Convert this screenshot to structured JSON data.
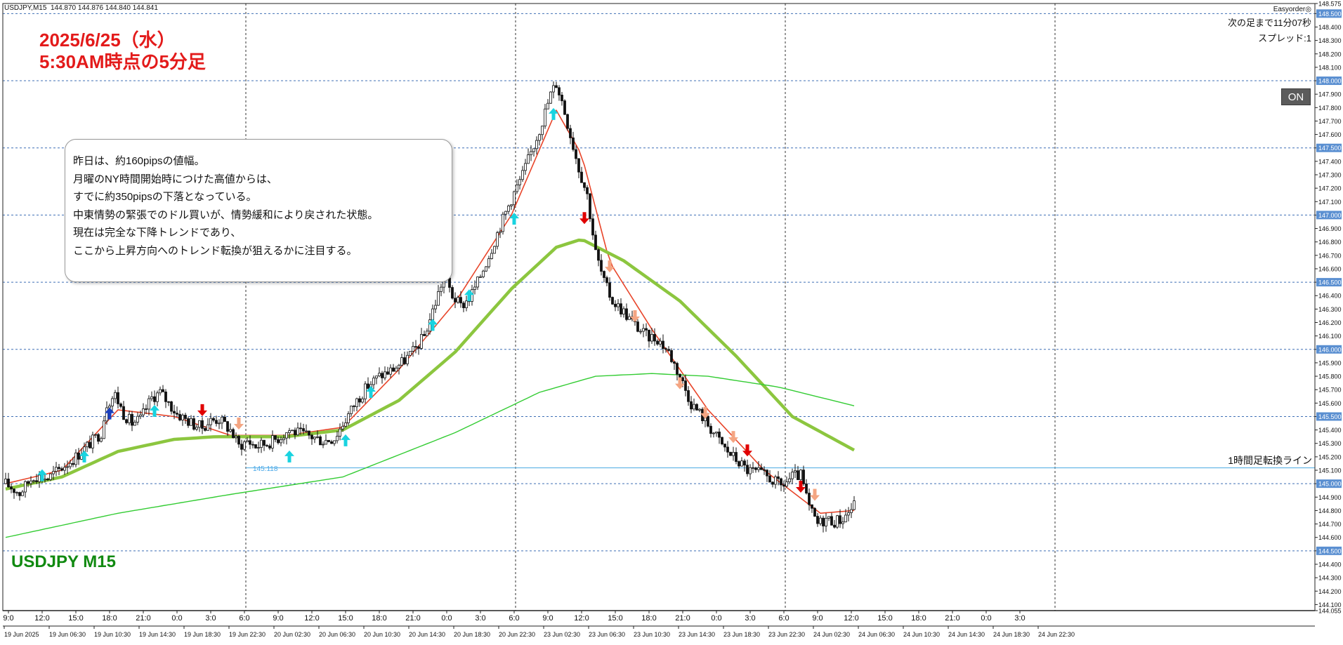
{
  "header": {
    "symbol_tf": "USDJPY,M15",
    "ohlc": "144.870 144.876 144.840 144.841"
  },
  "overlay": {
    "date_title": "2025/6/25（水）",
    "time_title": "5:30AM時点の5分足",
    "symbol_label": "USDJPY M15",
    "ea_name": "Easyorder◎",
    "next_bar": "次の足まで11分07秒",
    "spread": "スプレッド:1",
    "on_button": "ON",
    "hline_label": "1時間足転換ライン",
    "level_value": "145.118"
  },
  "note": {
    "lines": [
      "昨日は、約160pipsの値幅。",
      "月曜のNY時間開始時につけた高値からは、",
      "すでに約350pipsの下落となっている。",
      "中東情勢の緊張でのドル買いが、情勢緩和により戻された状態。",
      "現在は完全な下降トレンドであり、",
      "ここから上昇方向へのトレンド転換が狙えるかに注目する。"
    ]
  },
  "colors": {
    "title_red": "#e31a1a",
    "symbol_green": "#118a11",
    "ema_fast": "#e8452a",
    "ema_mid": "#26a69a",
    "ma_thick": "#8cc63f",
    "ma_thin": "#33cc33",
    "hline": "#5bb3e6",
    "buy_arrow": "#19d3e0",
    "buy_arrow_strong": "#1a3fbf",
    "sell_arrow_light": "#f4a582",
    "sell_arrow_strong": "#e00000"
  },
  "chart_data": {
    "type": "candlestick",
    "symbol": "USDJPY",
    "timeframe": "M15",
    "ylim": [
      144.055,
      148.575
    ],
    "price_ticks": [
      "148.575",
      "148.500",
      "148.400",
      "148.300",
      "148.200",
      "148.100",
      "148.000",
      "147.900",
      "147.800",
      "147.700",
      "147.600",
      "147.500",
      "147.400",
      "147.300",
      "147.200",
      "147.100",
      "147.000",
      "146.900",
      "146.800",
      "146.700",
      "146.600",
      "146.500",
      "146.400",
      "146.300",
      "146.200",
      "146.100",
      "146.000",
      "145.900",
      "145.800",
      "145.700",
      "145.600",
      "145.500",
      "145.400",
      "145.300",
      "145.200",
      "145.100",
      "145.000",
      "144.900",
      "144.800",
      "144.700",
      "144.600",
      "144.500",
      "144.400",
      "144.300",
      "144.200",
      "144.100",
      "144.055"
    ],
    "highlight_ticks": [
      "148.500",
      "148.000",
      "147.500",
      "147.000",
      "146.500",
      "146.000",
      "145.500",
      "145.000",
      "144.500"
    ],
    "upper_time_labels": [
      "9:0",
      "12:0",
      "15:0",
      "18:0",
      "21:0",
      "0:0",
      "3:0",
      "6:0",
      "9:0",
      "12:0",
      "15:0",
      "18:0",
      "21:0",
      "0:0",
      "3:0",
      "6:0",
      "9:0",
      "12:0",
      "15:0",
      "18:0",
      "21:0",
      "0:0",
      "3:0",
      "6:0",
      "9:0",
      "12:0",
      "15:0",
      "18:0",
      "21:0",
      "0:0",
      "3:0"
    ],
    "lower_time_labels": [
      "19 Jun 2025",
      "19 Jun 06:30",
      "19 Jun 10:30",
      "19 Jun 14:30",
      "19 Jun 18:30",
      "19 Jun 22:30",
      "20 Jun 02:30",
      "20 Jun 06:30",
      "20 Jun 10:30",
      "20 Jun 14:30",
      "20 Jun 18:30",
      "20 Jun 22:30",
      "23 Jun 02:30",
      "23 Jun 06:30",
      "23 Jun 10:30",
      "23 Jun 14:30",
      "23 Jun 18:30",
      "23 Jun 22:30",
      "24 Jun 02:30",
      "24 Jun 06:30",
      "24 Jun 10:30",
      "24 Jun 14:30",
      "24 Jun 18:30",
      "24 Jun 22:30"
    ],
    "close_path": [
      [
        0,
        145.0
      ],
      [
        5,
        144.93
      ],
      [
        10,
        145.06
      ],
      [
        15,
        145.04
      ],
      [
        20,
        145.12
      ],
      [
        25,
        145.2
      ],
      [
        30,
        145.3
      ],
      [
        34,
        145.38
      ],
      [
        36,
        145.6
      ],
      [
        39,
        145.66
      ],
      [
        42,
        145.52
      ],
      [
        45,
        145.45
      ],
      [
        48,
        145.48
      ],
      [
        52,
        145.64
      ],
      [
        55,
        145.68
      ],
      [
        58,
        145.6
      ],
      [
        61,
        145.52
      ],
      [
        64,
        145.48
      ],
      [
        67,
        145.44
      ],
      [
        70,
        145.42
      ],
      [
        73,
        145.47
      ],
      [
        76,
        145.48
      ],
      [
        80,
        145.4
      ],
      [
        83,
        145.28
      ],
      [
        86,
        145.32
      ],
      [
        89,
        145.28
      ],
      [
        93,
        145.3
      ],
      [
        97,
        145.34
      ],
      [
        101,
        145.4
      ],
      [
        105,
        145.37
      ],
      [
        109,
        145.35
      ],
      [
        113,
        145.32
      ],
      [
        117,
        145.34
      ],
      [
        121,
        145.48
      ],
      [
        125,
        145.62
      ],
      [
        129,
        145.73
      ],
      [
        133,
        145.8
      ],
      [
        137,
        145.84
      ],
      [
        141,
        145.9
      ],
      [
        145,
        145.98
      ],
      [
        149,
        146.1
      ],
      [
        153,
        146.35
      ],
      [
        156,
        146.55
      ],
      [
        159,
        146.4
      ],
      [
        162,
        146.32
      ],
      [
        165,
        146.38
      ],
      [
        168,
        146.5
      ],
      [
        172,
        146.7
      ],
      [
        176,
        146.92
      ],
      [
        180,
        147.12
      ],
      [
        184,
        147.3
      ],
      [
        188,
        147.52
      ],
      [
        191,
        147.7
      ],
      [
        194,
        147.9
      ],
      [
        196,
        147.98
      ],
      [
        198,
        147.85
      ],
      [
        201,
        147.6
      ],
      [
        204,
        147.35
      ],
      [
        207,
        147.15
      ],
      [
        210,
        146.72
      ],
      [
        213,
        146.5
      ],
      [
        216,
        146.36
      ],
      [
        220,
        146.28
      ],
      [
        224,
        146.18
      ],
      [
        228,
        146.1
      ],
      [
        232,
        146.08
      ],
      [
        236,
        145.98
      ],
      [
        240,
        145.8
      ],
      [
        244,
        145.6
      ],
      [
        248,
        145.5
      ],
      [
        252,
        145.38
      ],
      [
        256,
        145.26
      ],
      [
        260,
        145.18
      ],
      [
        264,
        145.1
      ],
      [
        268,
        145.08
      ],
      [
        272,
        145.04
      ],
      [
        276,
        144.98
      ],
      [
        280,
        145.05
      ],
      [
        283,
        145.06
      ],
      [
        286,
        144.82
      ],
      [
        289,
        144.7
      ],
      [
        292,
        144.74
      ],
      [
        295,
        144.72
      ],
      [
        298,
        144.74
      ],
      [
        302,
        144.84
      ]
    ],
    "series": [
      {
        "name": "",
        "style": "thin-red",
        "values": [
          [
            0,
            145.0
          ],
          [
            20,
            145.1
          ],
          [
            40,
            145.55
          ],
          [
            60,
            145.5
          ],
          [
            80,
            145.36
          ],
          [
            100,
            145.36
          ],
          [
            120,
            145.42
          ],
          [
            140,
            145.85
          ],
          [
            160,
            146.35
          ],
          [
            180,
            147.0
          ],
          [
            196,
            147.78
          ],
          [
            205,
            147.45
          ],
          [
            215,
            146.65
          ],
          [
            230,
            146.15
          ],
          [
            250,
            145.55
          ],
          [
            270,
            145.1
          ],
          [
            290,
            144.78
          ],
          [
            302,
            144.8
          ]
        ]
      },
      {
        "name": "",
        "style": "thick-green",
        "values": [
          [
            0,
            144.96
          ],
          [
            20,
            145.05
          ],
          [
            40,
            145.24
          ],
          [
            60,
            145.33
          ],
          [
            75,
            145.35
          ],
          [
            100,
            145.35
          ],
          [
            120,
            145.4
          ],
          [
            140,
            145.62
          ],
          [
            160,
            145.98
          ],
          [
            180,
            146.45
          ],
          [
            196,
            146.76
          ],
          [
            205,
            146.82
          ],
          [
            220,
            146.66
          ],
          [
            240,
            146.36
          ],
          [
            260,
            145.95
          ],
          [
            280,
            145.5
          ],
          [
            302,
            145.25
          ]
        ]
      },
      {
        "name": "",
        "style": "thin-green",
        "values": [
          [
            0,
            144.6
          ],
          [
            40,
            144.78
          ],
          [
            80,
            144.92
          ],
          [
            120,
            145.05
          ],
          [
            160,
            145.38
          ],
          [
            190,
            145.68
          ],
          [
            210,
            145.8
          ],
          [
            230,
            145.82
          ],
          [
            250,
            145.8
          ],
          [
            275,
            145.72
          ],
          [
            302,
            145.58
          ]
        ]
      }
    ],
    "horizontal_line": {
      "value": 145.118,
      "label": "1時間足転換ライン"
    },
    "arrows": [
      {
        "i": 13,
        "price": 145.06,
        "dir": "up",
        "kind": "buy"
      },
      {
        "i": 28,
        "price": 145.2,
        "dir": "up",
        "kind": "buy"
      },
      {
        "i": 37,
        "price": 145.52,
        "dir": "up",
        "kind": "buy-strong"
      },
      {
        "i": 53,
        "price": 145.54,
        "dir": "up",
        "kind": "buy"
      },
      {
        "i": 70,
        "price": 145.55,
        "dir": "down",
        "kind": "sell-strong"
      },
      {
        "i": 83,
        "price": 145.45,
        "dir": "down",
        "kind": "sell"
      },
      {
        "i": 101,
        "price": 145.2,
        "dir": "up",
        "kind": "buy"
      },
      {
        "i": 121,
        "price": 145.32,
        "dir": "up",
        "kind": "buy"
      },
      {
        "i": 130,
        "price": 145.68,
        "dir": "up",
        "kind": "buy"
      },
      {
        "i": 152,
        "price": 146.18,
        "dir": "up",
        "kind": "buy"
      },
      {
        "i": 165,
        "price": 146.4,
        "dir": "up",
        "kind": "buy"
      },
      {
        "i": 181,
        "price": 146.97,
        "dir": "up",
        "kind": "buy"
      },
      {
        "i": 195,
        "price": 147.75,
        "dir": "up",
        "kind": "buy"
      },
      {
        "i": 206,
        "price": 146.98,
        "dir": "down",
        "kind": "sell-strong"
      },
      {
        "i": 215,
        "price": 146.62,
        "dir": "down",
        "kind": "sell"
      },
      {
        "i": 224,
        "price": 146.25,
        "dir": "down",
        "kind": "sell"
      },
      {
        "i": 240,
        "price": 145.75,
        "dir": "down",
        "kind": "sell"
      },
      {
        "i": 249,
        "price": 145.53,
        "dir": "down",
        "kind": "sell"
      },
      {
        "i": 259,
        "price": 145.35,
        "dir": "down",
        "kind": "sell"
      },
      {
        "i": 264,
        "price": 145.25,
        "dir": "down",
        "kind": "sell-strong"
      },
      {
        "i": 283,
        "price": 144.98,
        "dir": "down",
        "kind": "sell-strong"
      },
      {
        "i": 288,
        "price": 144.92,
        "dir": "down",
        "kind": "sell"
      }
    ]
  }
}
